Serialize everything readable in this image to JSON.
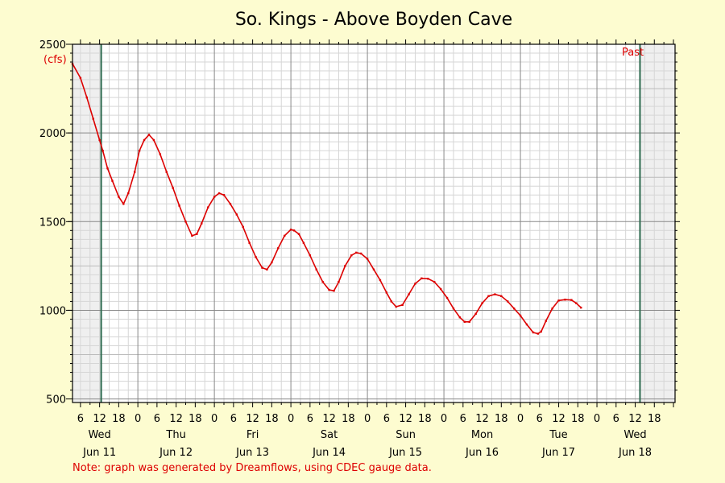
{
  "chart_data": {
    "type": "line",
    "title": "So. Kings - Above Boyden Cave",
    "unit_label": "(cfs)",
    "note": "Note: graph was generated by Dreamflows, using CDEC gauge data.",
    "marker_label": "Past",
    "ylim": [
      480,
      2500
    ],
    "y_ticks": [
      {
        "value": 500,
        "label": "500"
      },
      {
        "value": 1000,
        "label": "1000"
      },
      {
        "value": 1500,
        "label": "1500"
      },
      {
        "value": 2000,
        "label": "2000"
      },
      {
        "value": 2500,
        "label": "2500"
      }
    ],
    "xlim": [
      3.5,
      192.5
    ],
    "x_hour_ticks": [
      {
        "hour": 6,
        "label": "6"
      },
      {
        "hour": 12,
        "label": "12"
      },
      {
        "hour": 18,
        "label": "18"
      },
      {
        "hour": 24,
        "label": "0"
      },
      {
        "hour": 30,
        "label": "6"
      },
      {
        "hour": 36,
        "label": "12"
      },
      {
        "hour": 42,
        "label": "18"
      },
      {
        "hour": 48,
        "label": "0"
      },
      {
        "hour": 54,
        "label": "6"
      },
      {
        "hour": 60,
        "label": "12"
      },
      {
        "hour": 66,
        "label": "18"
      },
      {
        "hour": 72,
        "label": "0"
      },
      {
        "hour": 78,
        "label": "6"
      },
      {
        "hour": 84,
        "label": "12"
      },
      {
        "hour": 90,
        "label": "18"
      },
      {
        "hour": 96,
        "label": "0"
      },
      {
        "hour": 102,
        "label": "6"
      },
      {
        "hour": 108,
        "label": "12"
      },
      {
        "hour": 114,
        "label": "18"
      },
      {
        "hour": 120,
        "label": "0"
      },
      {
        "hour": 126,
        "label": "6"
      },
      {
        "hour": 132,
        "label": "12"
      },
      {
        "hour": 138,
        "label": "18"
      },
      {
        "hour": 144,
        "label": "0"
      },
      {
        "hour": 150,
        "label": "6"
      },
      {
        "hour": 156,
        "label": "12"
      },
      {
        "hour": 162,
        "label": "18"
      },
      {
        "hour": 168,
        "label": "0"
      },
      {
        "hour": 174,
        "label": "6"
      },
      {
        "hour": 180,
        "label": "12"
      },
      {
        "hour": 186,
        "label": "18"
      }
    ],
    "day_labels": [
      {
        "hour": 12,
        "day": "Wed",
        "date": "Jun 11"
      },
      {
        "hour": 36,
        "day": "Thu",
        "date": "Jun 12"
      },
      {
        "hour": 60,
        "day": "Fri",
        "date": "Jun 13"
      },
      {
        "hour": 84,
        "day": "Sat",
        "date": "Jun 14"
      },
      {
        "hour": 108,
        "day": "Sun",
        "date": "Jun 15"
      },
      {
        "hour": 132,
        "day": "Mon",
        "date": "Jun 16"
      },
      {
        "hour": 156,
        "day": "Tue",
        "date": "Jun 17"
      },
      {
        "hour": 180,
        "day": "Wed",
        "date": "Jun 18"
      }
    ],
    "shaded_ranges": [
      [
        3.5,
        12.5
      ],
      [
        181.5,
        192.5
      ]
    ],
    "boundary_lines": [
      12.5,
      181.5
    ],
    "series": [
      {
        "color": "#dd0000",
        "points": [
          [
            3.5,
            2390
          ],
          [
            6,
            2310
          ],
          [
            8,
            2200
          ],
          [
            10,
            2080
          ],
          [
            12,
            1960
          ],
          [
            13,
            1900
          ],
          [
            14.5,
            1800
          ],
          [
            16,
            1730
          ],
          [
            18,
            1640
          ],
          [
            19.5,
            1600
          ],
          [
            21,
            1660
          ],
          [
            23,
            1780
          ],
          [
            24.5,
            1900
          ],
          [
            26,
            1960
          ],
          [
            27.5,
            1990
          ],
          [
            29,
            1960
          ],
          [
            31,
            1880
          ],
          [
            33,
            1780
          ],
          [
            35,
            1690
          ],
          [
            37,
            1590
          ],
          [
            39,
            1500
          ],
          [
            41,
            1420
          ],
          [
            42.5,
            1430
          ],
          [
            44,
            1490
          ],
          [
            46,
            1580
          ],
          [
            48,
            1640
          ],
          [
            49.5,
            1660
          ],
          [
            51,
            1650
          ],
          [
            53,
            1600
          ],
          [
            55,
            1540
          ],
          [
            57,
            1470
          ],
          [
            59,
            1380
          ],
          [
            61,
            1300
          ],
          [
            63,
            1240
          ],
          [
            64.5,
            1230
          ],
          [
            66,
            1270
          ],
          [
            68,
            1350
          ],
          [
            70,
            1420
          ],
          [
            72,
            1455
          ],
          [
            73,
            1450
          ],
          [
            74.5,
            1430
          ],
          [
            76,
            1380
          ],
          [
            78,
            1310
          ],
          [
            80,
            1230
          ],
          [
            82,
            1160
          ],
          [
            84,
            1115
          ],
          [
            85.5,
            1110
          ],
          [
            87,
            1160
          ],
          [
            89,
            1250
          ],
          [
            91,
            1310
          ],
          [
            92.5,
            1325
          ],
          [
            94,
            1320
          ],
          [
            96,
            1290
          ],
          [
            98,
            1230
          ],
          [
            100,
            1170
          ],
          [
            102,
            1100
          ],
          [
            103.5,
            1050
          ],
          [
            105,
            1020
          ],
          [
            107,
            1030
          ],
          [
            109,
            1090
          ],
          [
            111,
            1150
          ],
          [
            113,
            1180
          ],
          [
            115,
            1178
          ],
          [
            117,
            1160
          ],
          [
            119,
            1120
          ],
          [
            121,
            1070
          ],
          [
            123,
            1010
          ],
          [
            125,
            960
          ],
          [
            126.5,
            935
          ],
          [
            128,
            935
          ],
          [
            130,
            980
          ],
          [
            132,
            1040
          ],
          [
            134,
            1080
          ],
          [
            136,
            1090
          ],
          [
            138,
            1080
          ],
          [
            140,
            1050
          ],
          [
            142,
            1010
          ],
          [
            144,
            970
          ],
          [
            146,
            920
          ],
          [
            148,
            875
          ],
          [
            149.5,
            868
          ],
          [
            150.5,
            880
          ],
          [
            152,
            940
          ],
          [
            154,
            1010
          ],
          [
            156,
            1055
          ],
          [
            158,
            1060
          ],
          [
            160,
            1058
          ],
          [
            161.5,
            1040
          ],
          [
            163,
            1015
          ]
        ]
      }
    ]
  }
}
